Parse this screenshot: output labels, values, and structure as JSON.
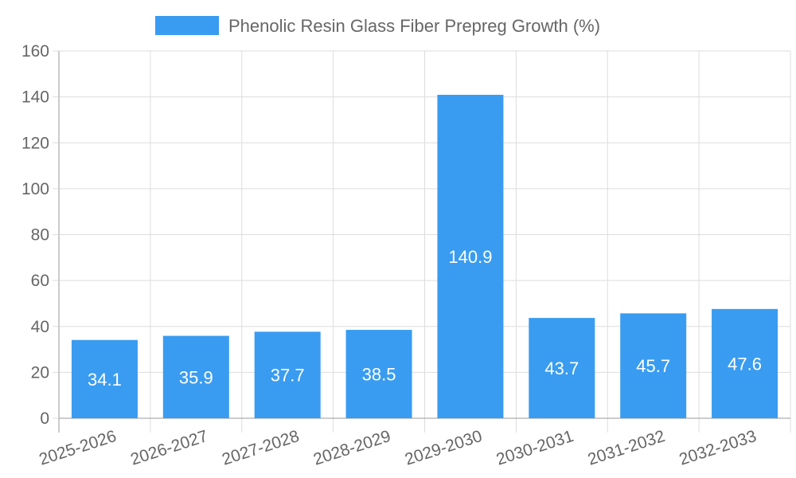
{
  "chart_data": {
    "type": "bar",
    "title": "",
    "xlabel": "",
    "ylabel": "",
    "ylim": [
      0,
      160
    ],
    "y_ticks": [
      0,
      20,
      40,
      60,
      80,
      100,
      120,
      140,
      160
    ],
    "grid": true,
    "legend_position": "top-center",
    "categories": [
      "2025-2026",
      "2026-2027",
      "2027-2028",
      "2028-2029",
      "2029-2030",
      "2030-2031",
      "2031-2032",
      "2032-2033"
    ],
    "series": [
      {
        "name": "Phenolic Resin Glass Fiber Prepreg Growth (%)",
        "color": "#399cf0",
        "values": [
          34.1,
          35.9,
          37.7,
          38.5,
          140.9,
          43.7,
          45.7,
          47.6
        ],
        "labels": [
          "34.1",
          "35.9",
          "37.7",
          "38.5",
          "140.9",
          "43.7",
          "45.7",
          "47.6"
        ]
      }
    ]
  }
}
